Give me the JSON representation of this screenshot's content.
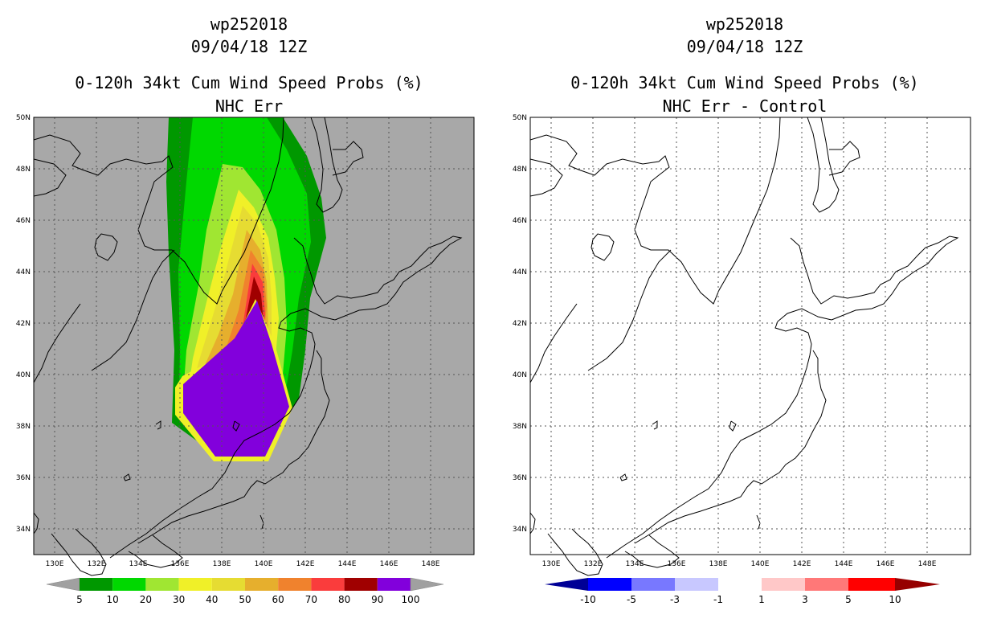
{
  "panels": [
    {
      "storm_id": "wp252018",
      "date": "09/04/18 12Z",
      "product": "0-120h 34kt Cum Wind Speed Probs (%)",
      "subtitle": "NHC Err",
      "map_bg": "#a8a8a8",
      "lat_labels": [
        "50N",
        "48N",
        "46N",
        "44N",
        "42N",
        "40N",
        "38N",
        "36N",
        "34N"
      ],
      "lon_labels": [
        "130E",
        "132E",
        "134E",
        "136E",
        "138E",
        "140E",
        "142E",
        "144E",
        "146E",
        "148E"
      ],
      "colorbar": {
        "colors": [
          "#009800",
          "#00d800",
          "#a0e632",
          "#f0f028",
          "#e6dc32",
          "#e6af2d",
          "#f0822d",
          "#fa3c3c",
          "#a00000",
          "#8200dc"
        ],
        "labels": [
          "5",
          "10",
          "20",
          "30",
          "40",
          "50",
          "60",
          "70",
          "80",
          "90",
          "100"
        ],
        "extend_colors": [
          "#a0a0a0",
          "#a0a0a0"
        ]
      }
    },
    {
      "storm_id": "wp252018",
      "date": "09/04/18 12Z",
      "product": "0-120h 34kt Cum Wind Speed Probs (%)",
      "subtitle": "NHC Err - Control",
      "map_bg": "#ffffff",
      "lat_labels": [
        "50N",
        "48N",
        "46N",
        "44N",
        "42N",
        "40N",
        "38N",
        "36N",
        "34N"
      ],
      "lon_labels": [
        "130E",
        "132E",
        "134E",
        "136E",
        "138E",
        "140E",
        "142E",
        "144E",
        "146E",
        "148E"
      ],
      "colorbar": {
        "colors": [
          "#0000ff",
          "#7878ff",
          "#c8c8ff",
          "#ffffff",
          "#ffc8c8",
          "#ff7878",
          "#ff0000"
        ],
        "labels": [
          "-10",
          "-5",
          "-3",
          "-1",
          "1",
          "3",
          "5",
          "10"
        ],
        "extend_colors": [
          "#000096",
          "#960000"
        ]
      }
    }
  ]
}
